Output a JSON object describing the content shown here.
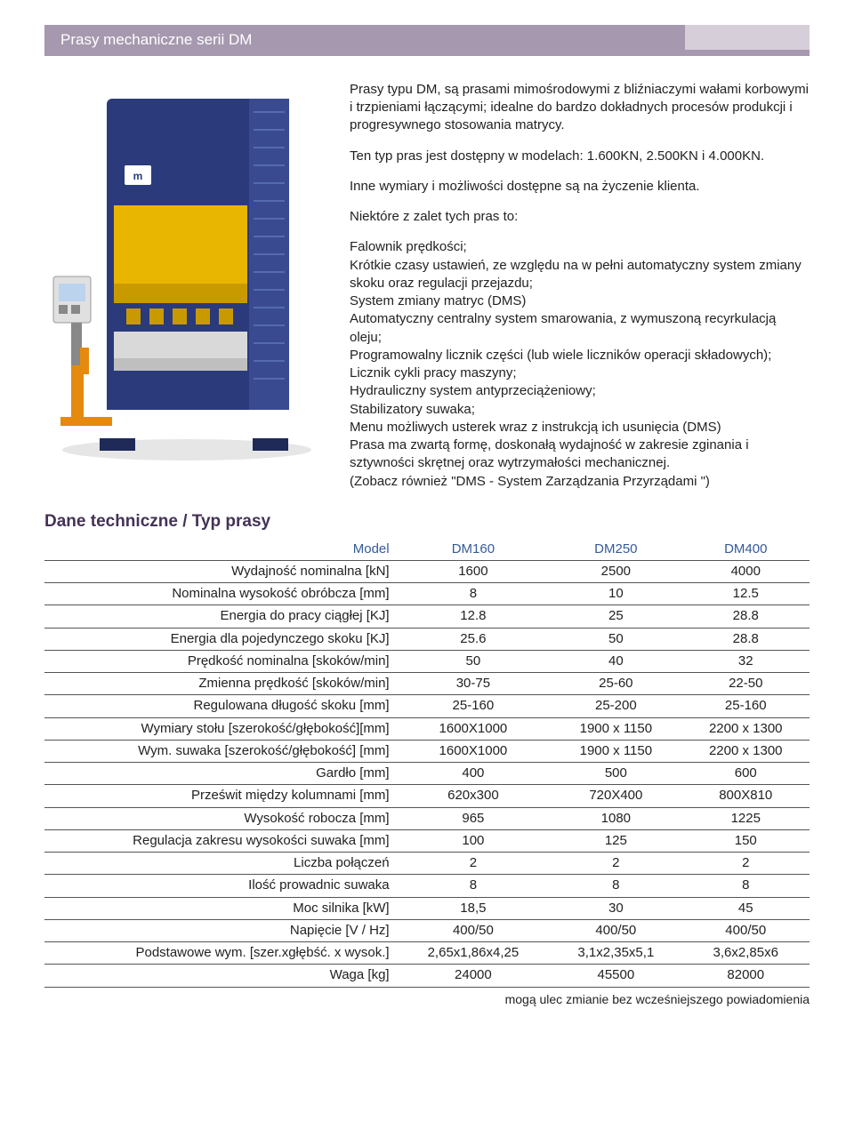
{
  "title": "Prasy mechaniczne serii DM",
  "intro": {
    "p1": "Prasy typu DM, są prasami mimośrodowymi z bliźniaczymi wałami korbowymi i trzpieniami łączącymi; idealne do bardzo dokładnych procesów produkcji i progresywnego stosowania matrycy.",
    "p2": "Ten typ pras jest dostępny w modelach: 1.600KN, 2.500KN i 4.000KN.",
    "p3": "Inne wymiary i możliwości dostępne są na życzenie klienta.",
    "advantages_heading": "Niektóre z zalet tych pras to:",
    "advantages_body": "Falownik prędkości;\nKrótkie czasy ustawień, ze względu na w pełni automatyczny system zmiany skoku oraz regulacji przejazdu;\nSystem zmiany matryc (DMS)\nAutomatyczny centralny system smarowania, z wymuszoną recyrkulacją oleju;\nProgramowalny licznik części (lub wiele liczników operacji składowych);\nLicznik cykli pracy maszyny;\nHydrauliczny system antyprzeciążeniowy;\nStabilizatory suwaka;\nMenu możliwych usterek wraz z instrukcją ich usunięcia (DMS)\nPrasa ma zwartą formę, doskonałą wydajność w zakresie zginania i sztywności skrętnej oraz wytrzymałości mechanicznej.\n(Zobacz również \"DMS - System Zarządzania Przyrządami \")"
  },
  "section_heading": "Dane techniczne / Typ prasy",
  "table": {
    "header": [
      "Model",
      "DM160",
      "DM250",
      "DM400"
    ],
    "rows": [
      [
        "Wydajność nominalna [kN]",
        "1600",
        "2500",
        "4000"
      ],
      [
        "Nominalna wysokość obróbcza [mm]",
        "8",
        "10",
        "12.5"
      ],
      [
        "Energia do pracy ciągłej [KJ]",
        "12.8",
        "25",
        "28.8"
      ],
      [
        "Energia dla pojedynczego skoku [KJ]",
        "25.6",
        "50",
        "28.8"
      ],
      [
        "Prędkość nominalna [skoków/min]",
        "50",
        "40",
        "32"
      ],
      [
        "Zmienna prędkość [skoków/min]",
        "30-75",
        "25-60",
        "22-50"
      ],
      [
        "Regulowana długość skoku [mm]",
        "25-160",
        "25-200",
        "25-160"
      ],
      [
        "Wymiary stołu [szerokość/głębokość][mm]",
        "1600X1000",
        "1900 x 1150",
        "2200 x 1300"
      ],
      [
        "Wym. suwaka [szerokość/głębokość] [mm]",
        "1600X1000",
        "1900 x 1150",
        "2200 x 1300"
      ],
      [
        "Gardło [mm]",
        "400",
        "500",
        "600"
      ],
      [
        "Prześwit między kolumnami [mm]",
        "620x300",
        "720X400",
        "800X810"
      ],
      [
        "Wysokość robocza [mm]",
        "965",
        "1080",
        "1225"
      ],
      [
        "Regulacja zakresu wysokości suwaka [mm]",
        "100",
        "125",
        "150"
      ],
      [
        "Liczba połączeń",
        "2",
        "2",
        "2"
      ],
      [
        "Ilość prowadnic suwaka",
        "8",
        "8",
        "8"
      ],
      [
        "Moc silnika [kW]",
        "18,5",
        "30",
        "45"
      ],
      [
        "Napięcie [V / Hz]",
        "400/50",
        "400/50",
        "400/50"
      ],
      [
        "Podstawowe wym. [szer.xgłębść. x wysok.]",
        "2,65x1,86x4,25",
        "3,1x2,35x5,1",
        "3,6x2,85x6"
      ],
      [
        "Waga [kg]",
        "24000",
        "45500",
        "82000"
      ]
    ]
  },
  "footnote": "mogą ulec zmianie bez wcześniejszego powiadomienia",
  "colors": {
    "title_bg": "#a698af",
    "tab_bg": "#d6cfd9",
    "heading": "#443256",
    "model_header": "#355a9a",
    "machine_body": "#2b3a7a",
    "machine_slide": "#e8b500",
    "machine_stand": "#e58a0e"
  }
}
